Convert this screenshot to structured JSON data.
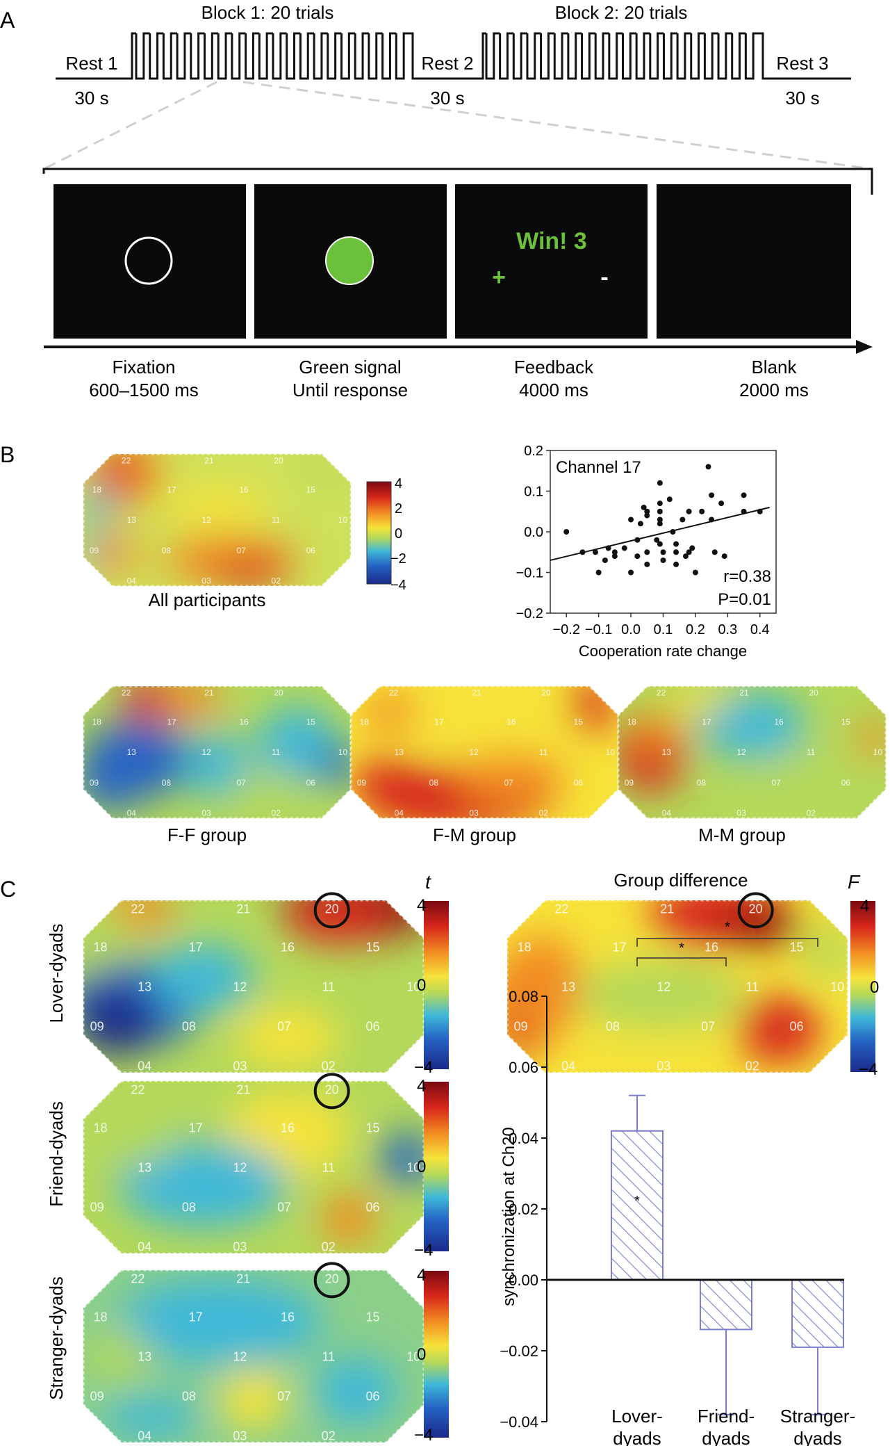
{
  "panel_a": {
    "letter": "A",
    "block1_label": "Block 1: 20 trials",
    "block2_label": "Block 2: 20 trials",
    "rest1": "Rest 1",
    "rest2": "Rest 2",
    "rest3": "Rest 3",
    "rest1_dur": "30 s",
    "rest2_dur": "30 s",
    "rest3_dur": "30 s",
    "trials_per_block": 20,
    "feedback_text": "Win! 3",
    "feedback_plus": "+",
    "feedback_minus": "-",
    "screens": [
      {
        "name": "Fixation",
        "duration": "600–1500 ms"
      },
      {
        "name": "Green signal",
        "duration": "Until response"
      },
      {
        "name": "Feedback",
        "duration": "4000 ms"
      },
      {
        "name": "Blank",
        "duration": "2000 ms"
      }
    ],
    "signal_color": "#6cc13b",
    "feedback_color": "#6cc13b"
  },
  "panel_b": {
    "letter": "B",
    "all_label": "All participants",
    "group_labels": [
      "F-F group",
      "F-M group",
      "M-M group"
    ],
    "colorbar_ticks": [
      "4",
      "2",
      "0",
      "−2",
      "−4"
    ]
  },
  "panel_c": {
    "letter": "C",
    "row_labels": [
      "Lover-dyads",
      "Friend-dyads",
      "Stranger-dyads"
    ],
    "t_symbol": "t",
    "f_symbol": "F",
    "group_diff_title": "Group difference",
    "colorbar_ticks": [
      "4",
      "0",
      "−4"
    ],
    "highlight_channel": "20"
  },
  "channel_labels": [
    "22",
    "21",
    "20",
    "18",
    "17",
    "16",
    "15",
    "13",
    "12",
    "11",
    "10",
    "09",
    "08",
    "07",
    "06",
    "04",
    "03",
    "02"
  ],
  "chart_data": [
    {
      "type": "scatter",
      "title": "Channel 17",
      "xlabel": "Cooperation rate change",
      "ylabel": "",
      "xlim": [
        -0.25,
        0.45
      ],
      "ylim": [
        -0.2,
        0.2
      ],
      "xticks": [
        "−0.2",
        "−0.1",
        "0.0",
        "0.1",
        "0.2",
        "0.3",
        "0.4"
      ],
      "yticks": [
        "0.2",
        "0.1",
        "0.0",
        "−0.1",
        "−0.2"
      ],
      "annotations": [
        "r=0.38",
        "P=0.01"
      ],
      "points": [
        [
          -0.2,
          0.0
        ],
        [
          -0.15,
          -0.05
        ],
        [
          -0.11,
          -0.05
        ],
        [
          -0.1,
          -0.1
        ],
        [
          -0.07,
          -0.04
        ],
        [
          -0.05,
          -0.05
        ],
        [
          -0.05,
          -0.06
        ],
        [
          -0.02,
          -0.04
        ],
        [
          0.0,
          0.03
        ],
        [
          0.0,
          -0.1
        ],
        [
          0.02,
          -0.02
        ],
        [
          0.03,
          0.02
        ],
        [
          0.04,
          0.06
        ],
        [
          0.05,
          0.05
        ],
        [
          0.05,
          0.04
        ],
        [
          0.05,
          -0.05
        ],
        [
          0.05,
          -0.08
        ],
        [
          0.08,
          -0.02
        ],
        [
          0.09,
          0.12
        ],
        [
          0.09,
          0.07
        ],
        [
          0.09,
          0.05
        ],
        [
          0.09,
          0.03
        ],
        [
          0.09,
          0.02
        ],
        [
          0.09,
          -0.03
        ],
        [
          0.1,
          -0.05
        ],
        [
          0.1,
          -0.07
        ],
        [
          0.13,
          0.0
        ],
        [
          0.14,
          -0.03
        ],
        [
          0.14,
          -0.05
        ],
        [
          0.14,
          -0.08
        ],
        [
          0.16,
          0.03
        ],
        [
          0.18,
          0.05
        ],
        [
          0.18,
          -0.05
        ],
        [
          0.19,
          -0.04
        ],
        [
          0.2,
          -0.1
        ],
        [
          0.22,
          0.05
        ],
        [
          0.24,
          0.16
        ],
        [
          0.25,
          0.09
        ],
        [
          0.25,
          0.03
        ],
        [
          0.26,
          -0.05
        ],
        [
          0.28,
          0.07
        ],
        [
          0.29,
          -0.06
        ],
        [
          0.35,
          0.09
        ],
        [
          0.35,
          0.05
        ],
        [
          0.4,
          0.05
        ],
        [
          0.12,
          0.08
        ],
        [
          0.02,
          -0.06
        ],
        [
          -0.08,
          -0.07
        ],
        [
          0.17,
          -0.06
        ]
      ],
      "fit_line": [
        [
          -0.25,
          -0.07
        ],
        [
          0.43,
          0.06
        ]
      ]
    },
    {
      "type": "bar",
      "title": "",
      "xlabel": "",
      "ylabel": "synchronization at Ch20",
      "categories": [
        "Lover-\ndyads",
        "Friend-\ndyads",
        "Stranger-\ndyads"
      ],
      "values": [
        0.042,
        -0.014,
        -0.019
      ],
      "errors_upper": [
        0.052,
        null,
        null
      ],
      "errors_lower": [
        null,
        -0.038,
        -0.038
      ],
      "ylim": [
        -0.04,
        0.08
      ],
      "yticks": [
        "0.08",
        "0.06",
        "0.04",
        "0.02",
        "0.00",
        "−0.02",
        "−0.04"
      ],
      "significance": [
        "*",
        "*",
        "*"
      ],
      "bar_color": "#7a7fcf"
    }
  ]
}
